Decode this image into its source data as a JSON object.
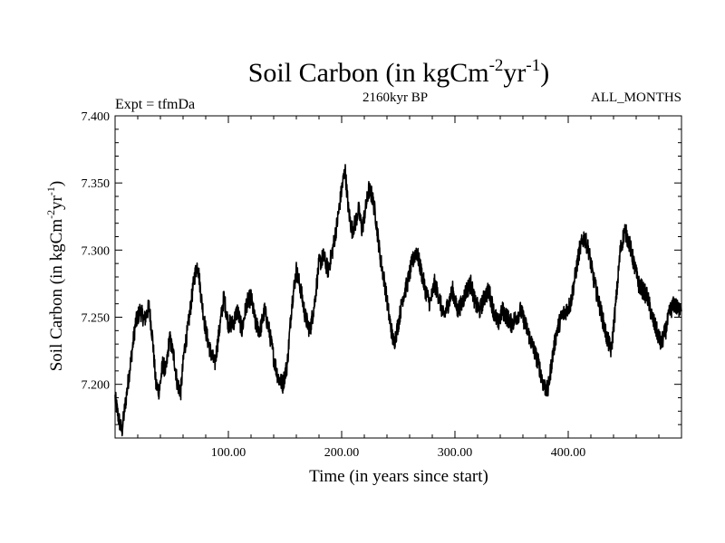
{
  "chart_data": {
    "type": "line",
    "title_main": "Soil Carbon (in kgCm",
    "title_sup1": "-2",
    "title_mid": "yr",
    "title_sup2": "-1",
    "title_end": ")",
    "subtitle_left": "Expt = tfmDa",
    "subtitle_center": "2160kyr BP",
    "subtitle_right": "ALL_MONTHS",
    "xlabel": "Time (in years since start)",
    "ylabel_main": "Soil Carbon (in kgCm",
    "ylabel_sup1": "-2",
    "ylabel_mid": "yr",
    "ylabel_sup2": "-1",
    "ylabel_end": ")",
    "xlim": [
      0,
      500
    ],
    "ylim": [
      7.16,
      7.4
    ],
    "x_ticks": [
      {
        "value": 100,
        "label": "100.00"
      },
      {
        "value": 200,
        "label": "200.00"
      },
      {
        "value": 300,
        "label": "300.00"
      },
      {
        "value": 400,
        "label": "400.00"
      }
    ],
    "y_ticks": [
      {
        "value": 7.2,
        "label": "7.200"
      },
      {
        "value": 7.25,
        "label": "7.250"
      },
      {
        "value": 7.3,
        "label": "7.300"
      },
      {
        "value": 7.35,
        "label": "7.350"
      },
      {
        "value": 7.4,
        "label": "7.400"
      }
    ],
    "series": [
      {
        "name": "Soil Carbon",
        "color": "#000000",
        "noise_amplitude": 0.007,
        "points": [
          [
            0,
            7.19
          ],
          [
            3,
            7.175
          ],
          [
            6,
            7.165
          ],
          [
            9,
            7.185
          ],
          [
            12,
            7.205
          ],
          [
            15,
            7.225
          ],
          [
            18,
            7.245
          ],
          [
            22,
            7.255
          ],
          [
            26,
            7.248
          ],
          [
            30,
            7.258
          ],
          [
            33,
            7.235
          ],
          [
            36,
            7.2
          ],
          [
            39,
            7.195
          ],
          [
            42,
            7.215
          ],
          [
            45,
            7.21
          ],
          [
            48,
            7.235
          ],
          [
            52,
            7.22
          ],
          [
            55,
            7.2
          ],
          [
            58,
            7.195
          ],
          [
            61,
            7.225
          ],
          [
            64,
            7.24
          ],
          [
            67,
            7.26
          ],
          [
            70,
            7.28
          ],
          [
            73,
            7.29
          ],
          [
            76,
            7.265
          ],
          [
            80,
            7.24
          ],
          [
            84,
            7.225
          ],
          [
            88,
            7.215
          ],
          [
            92,
            7.24
          ],
          [
            96,
            7.265
          ],
          [
            100,
            7.245
          ],
          [
            104,
            7.245
          ],
          [
            108,
            7.255
          ],
          [
            112,
            7.24
          ],
          [
            116,
            7.26
          ],
          [
            120,
            7.265
          ],
          [
            124,
            7.245
          ],
          [
            128,
            7.24
          ],
          [
            132,
            7.255
          ],
          [
            136,
            7.24
          ],
          [
            140,
            7.22
          ],
          [
            144,
            7.205
          ],
          [
            148,
            7.2
          ],
          [
            152,
            7.215
          ],
          [
            156,
            7.26
          ],
          [
            160,
            7.285
          ],
          [
            164,
            7.27
          ],
          [
            168,
            7.25
          ],
          [
            172,
            7.24
          ],
          [
            176,
            7.26
          ],
          [
            180,
            7.29
          ],
          [
            184,
            7.295
          ],
          [
            188,
            7.285
          ],
          [
            192,
            7.3
          ],
          [
            196,
            7.32
          ],
          [
            200,
            7.345
          ],
          [
            203,
            7.36
          ],
          [
            206,
            7.33
          ],
          [
            209,
            7.315
          ],
          [
            212,
            7.32
          ],
          [
            215,
            7.33
          ],
          [
            218,
            7.315
          ],
          [
            221,
            7.33
          ],
          [
            224,
            7.345
          ],
          [
            227,
            7.34
          ],
          [
            230,
            7.325
          ],
          [
            234,
            7.295
          ],
          [
            238,
            7.275
          ],
          [
            242,
            7.25
          ],
          [
            246,
            7.23
          ],
          [
            250,
            7.245
          ],
          [
            254,
            7.265
          ],
          [
            258,
            7.275
          ],
          [
            262,
            7.29
          ],
          [
            266,
            7.3
          ],
          [
            270,
            7.285
          ],
          [
            274,
            7.27
          ],
          [
            278,
            7.26
          ],
          [
            282,
            7.275
          ],
          [
            286,
            7.265
          ],
          [
            290,
            7.25
          ],
          [
            294,
            7.26
          ],
          [
            298,
            7.27
          ],
          [
            302,
            7.255
          ],
          [
            306,
            7.26
          ],
          [
            310,
            7.27
          ],
          [
            314,
            7.275
          ],
          [
            318,
            7.26
          ],
          [
            322,
            7.255
          ],
          [
            326,
            7.265
          ],
          [
            330,
            7.27
          ],
          [
            334,
            7.255
          ],
          [
            338,
            7.245
          ],
          [
            342,
            7.255
          ],
          [
            346,
            7.25
          ],
          [
            350,
            7.245
          ],
          [
            354,
            7.25
          ],
          [
            358,
            7.255
          ],
          [
            362,
            7.245
          ],
          [
            366,
            7.235
          ],
          [
            370,
            7.225
          ],
          [
            374,
            7.215
          ],
          [
            378,
            7.2
          ],
          [
            382,
            7.195
          ],
          [
            386,
            7.22
          ],
          [
            390,
            7.24
          ],
          [
            394,
            7.25
          ],
          [
            398,
            7.255
          ],
          [
            402,
            7.26
          ],
          [
            406,
            7.28
          ],
          [
            410,
            7.3
          ],
          [
            414,
            7.31
          ],
          [
            418,
            7.3
          ],
          [
            422,
            7.28
          ],
          [
            426,
            7.265
          ],
          [
            430,
            7.25
          ],
          [
            434,
            7.235
          ],
          [
            438,
            7.225
          ],
          [
            442,
            7.26
          ],
          [
            446,
            7.3
          ],
          [
            450,
            7.315
          ],
          [
            454,
            7.305
          ],
          [
            458,
            7.29
          ],
          [
            462,
            7.275
          ],
          [
            466,
            7.27
          ],
          [
            470,
            7.265
          ],
          [
            474,
            7.25
          ],
          [
            478,
            7.24
          ],
          [
            482,
            7.23
          ],
          [
            486,
            7.24
          ],
          [
            490,
            7.255
          ],
          [
            494,
            7.26
          ],
          [
            497,
            7.255
          ],
          [
            500,
            7.26
          ]
        ]
      }
    ]
  }
}
